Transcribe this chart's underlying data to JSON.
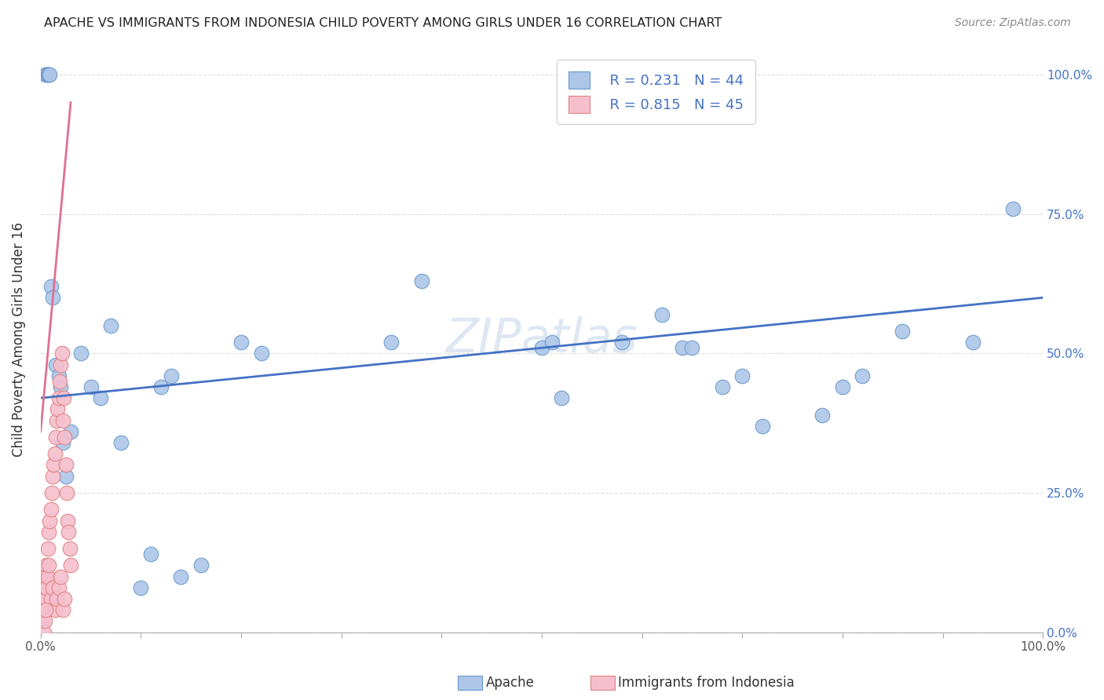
{
  "title": "APACHE VS IMMIGRANTS FROM INDONESIA CHILD POVERTY AMONG GIRLS UNDER 16 CORRELATION CHART",
  "source": "Source: ZipAtlas.com",
  "ylabel": "Child Poverty Among Girls Under 16",
  "ytick_labels": [
    "0.0%",
    "25.0%",
    "50.0%",
    "75.0%",
    "100.0%"
  ],
  "ytick_values": [
    0.0,
    0.25,
    0.5,
    0.75,
    1.0
  ],
  "watermark": "ZIPatlas",
  "legend_apache_r": "R = 0.231",
  "legend_apache_n": "N = 44",
  "legend_indonesia_r": "R = 0.815",
  "legend_indonesia_n": "N = 45",
  "apache_color": "#adc6e8",
  "apache_edge_color": "#6699cc",
  "apache_line_color": "#4472c4",
  "indonesia_color": "#f5bfce",
  "indonesia_edge_color": "#e08080",
  "indonesia_line_color": "#e07090",
  "legend_text_color": "#4472c4",
  "title_color": "#222222",
  "apache_scatter_x": [
    0.005,
    0.006,
    0.007,
    0.008,
    0.009,
    0.01,
    0.012,
    0.015,
    0.018,
    0.02,
    0.022,
    0.025,
    0.03,
    0.04,
    0.05,
    0.06,
    0.07,
    0.08,
    0.1,
    0.11,
    0.12,
    0.13,
    0.14,
    0.16,
    0.2,
    0.22,
    0.35,
    0.38,
    0.5,
    0.51,
    0.52,
    0.58,
    0.62,
    0.64,
    0.65,
    0.68,
    0.7,
    0.72,
    0.78,
    0.8,
    0.82,
    0.86,
    0.93,
    0.97
  ],
  "apache_scatter_y": [
    1.0,
    1.0,
    1.0,
    1.0,
    1.0,
    0.62,
    0.6,
    0.48,
    0.46,
    0.44,
    0.34,
    0.28,
    0.36,
    0.5,
    0.44,
    0.42,
    0.55,
    0.34,
    0.08,
    0.14,
    0.44,
    0.46,
    0.1,
    0.12,
    0.52,
    0.5,
    0.52,
    0.63,
    0.51,
    0.52,
    0.42,
    0.52,
    0.57,
    0.51,
    0.51,
    0.44,
    0.46,
    0.37,
    0.39,
    0.44,
    0.46,
    0.54,
    0.52,
    0.76
  ],
  "indonesia_scatter_x": [
    0.001,
    0.002,
    0.003,
    0.004,
    0.005,
    0.006,
    0.007,
    0.008,
    0.009,
    0.01,
    0.011,
    0.012,
    0.013,
    0.014,
    0.015,
    0.016,
    0.017,
    0.018,
    0.019,
    0.02,
    0.021,
    0.022,
    0.023,
    0.024,
    0.025,
    0.026,
    0.027,
    0.028,
    0.029,
    0.03,
    0.005,
    0.006,
    0.007,
    0.008,
    0.01,
    0.012,
    0.014,
    0.016,
    0.018,
    0.02,
    0.022,
    0.024,
    0.003,
    0.004,
    0.005
  ],
  "indonesia_scatter_y": [
    0.02,
    0.04,
    0.06,
    0.08,
    0.1,
    0.12,
    0.15,
    0.18,
    0.2,
    0.22,
    0.25,
    0.28,
    0.3,
    0.32,
    0.35,
    0.38,
    0.4,
    0.42,
    0.45,
    0.48,
    0.5,
    0.38,
    0.42,
    0.35,
    0.3,
    0.25,
    0.2,
    0.18,
    0.15,
    0.12,
    0.06,
    0.08,
    0.1,
    0.12,
    0.06,
    0.08,
    0.04,
    0.06,
    0.08,
    0.1,
    0.04,
    0.06,
    0.0,
    0.02,
    0.04
  ],
  "apache_line_x": [
    0.0,
    1.0
  ],
  "apache_line_y": [
    0.42,
    0.6
  ],
  "indonesia_line_x": [
    0.0,
    0.03
  ],
  "indonesia_line_y": [
    0.36,
    0.95
  ],
  "grid_color": "#dddddd",
  "background_color": "#ffffff",
  "xlim": [
    0.0,
    1.0
  ],
  "ylim": [
    0.0,
    1.05
  ]
}
